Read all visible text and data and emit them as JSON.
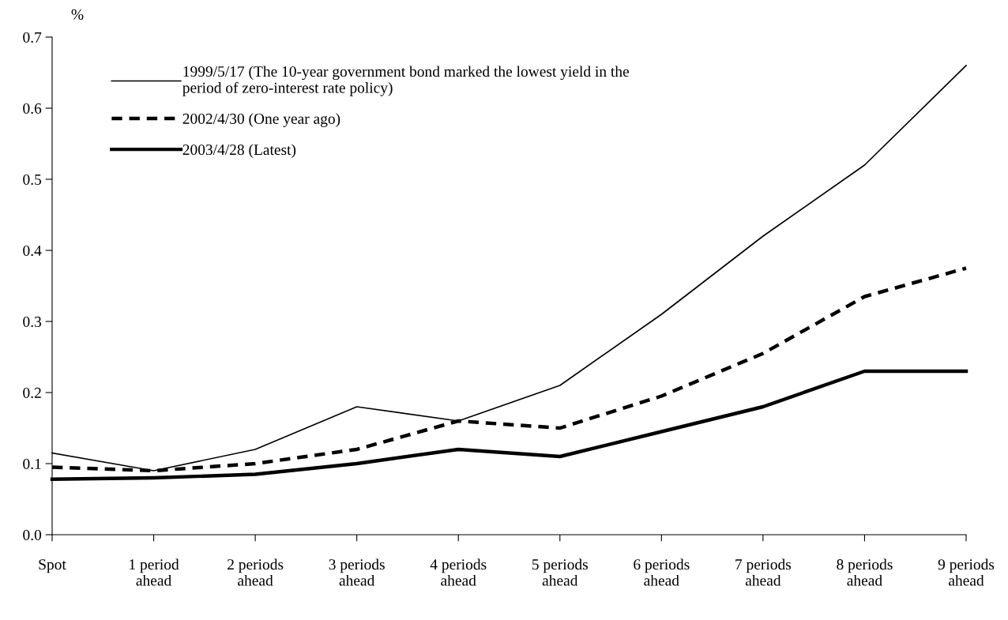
{
  "chart_data": {
    "type": "line",
    "ylabel": "%",
    "categories": [
      "Spot",
      "1 period\nahead",
      "2 periods\nahead",
      "3 periods\nahead",
      "4 periods\nahead",
      "5 periods\nahead",
      "6 periods\nahead",
      "7 periods\nahead",
      "8 periods\nahead",
      "9 periods\nahead"
    ],
    "series": [
      {
        "name": "1999/5/17 (The 10-year government bond marked the lowest yield in the\nperiod of zero-interest rate policy)",
        "color": "#000000",
        "line_style": "solid",
        "values": [
          0.115,
          0.09,
          0.12,
          0.18,
          0.16,
          0.21,
          0.31,
          0.42,
          0.52,
          0.66
        ]
      },
      {
        "name": "2002/4/30 (One year ago)",
        "color": "#000000",
        "line_style": "dashed",
        "values": [
          0.095,
          0.09,
          0.1,
          0.12,
          0.16,
          0.15,
          0.195,
          0.255,
          0.335,
          0.375
        ]
      },
      {
        "name": "2003/4/28 (Latest)",
        "color": "#000000",
        "line_style": "solid",
        "values": [
          0.078,
          0.08,
          0.085,
          0.1,
          0.12,
          0.11,
          0.145,
          0.18,
          0.23,
          0.23
        ]
      }
    ],
    "ylim": [
      0,
      0.7
    ],
    "yticks": [
      {
        "value": 0,
        "label": "0.0"
      },
      0.1,
      0.2,
      0.3,
      0.4,
      0.5,
      0.6,
      0.7
    ],
    "grid": false,
    "legend": "top left",
    "marker": "none"
  }
}
